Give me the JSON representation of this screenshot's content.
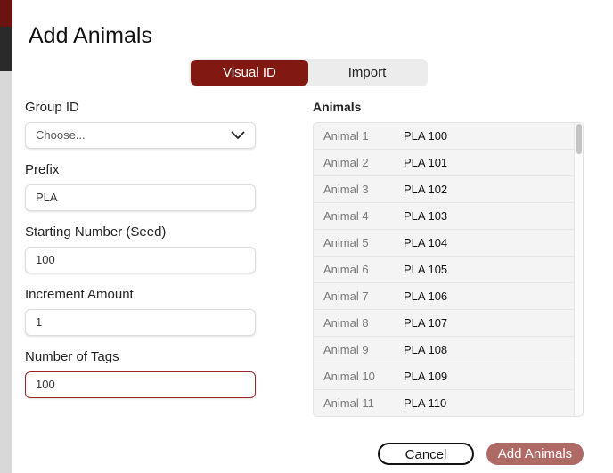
{
  "dialog": {
    "title": "Add Animals"
  },
  "tabs": [
    {
      "label": "Visual ID",
      "active": true
    },
    {
      "label": "Import",
      "active": false
    }
  ],
  "form": {
    "group_id": {
      "label": "Group ID",
      "value": "Choose..."
    },
    "prefix": {
      "label": "Prefix",
      "value": "PLA"
    },
    "seed": {
      "label": "Starting Number (Seed)",
      "value": "100"
    },
    "increment": {
      "label": "Increment Amount",
      "value": "1"
    },
    "count": {
      "label": "Number of Tags",
      "value": "100"
    }
  },
  "animals": {
    "heading": "Animals",
    "rows": [
      {
        "name": "Animal 1",
        "tag": "PLA 100"
      },
      {
        "name": "Animal 2",
        "tag": "PLA 101"
      },
      {
        "name": "Animal 3",
        "tag": "PLA 102"
      },
      {
        "name": "Animal 4",
        "tag": "PLA 103"
      },
      {
        "name": "Animal 5",
        "tag": "PLA 104"
      },
      {
        "name": "Animal 6",
        "tag": "PLA 105"
      },
      {
        "name": "Animal 7",
        "tag": "PLA 106"
      },
      {
        "name": "Animal 8",
        "tag": "PLA 107"
      },
      {
        "name": "Animal 9",
        "tag": "PLA 108"
      },
      {
        "name": "Animal 10",
        "tag": "PLA 109"
      },
      {
        "name": "Animal 11",
        "tag": "PLA 110"
      }
    ]
  },
  "buttons": {
    "cancel": "Cancel",
    "add": "Add Animals"
  },
  "colors": {
    "accent": "#821812",
    "add_button": "#b06a66",
    "error_border": "#9a2a2a"
  }
}
